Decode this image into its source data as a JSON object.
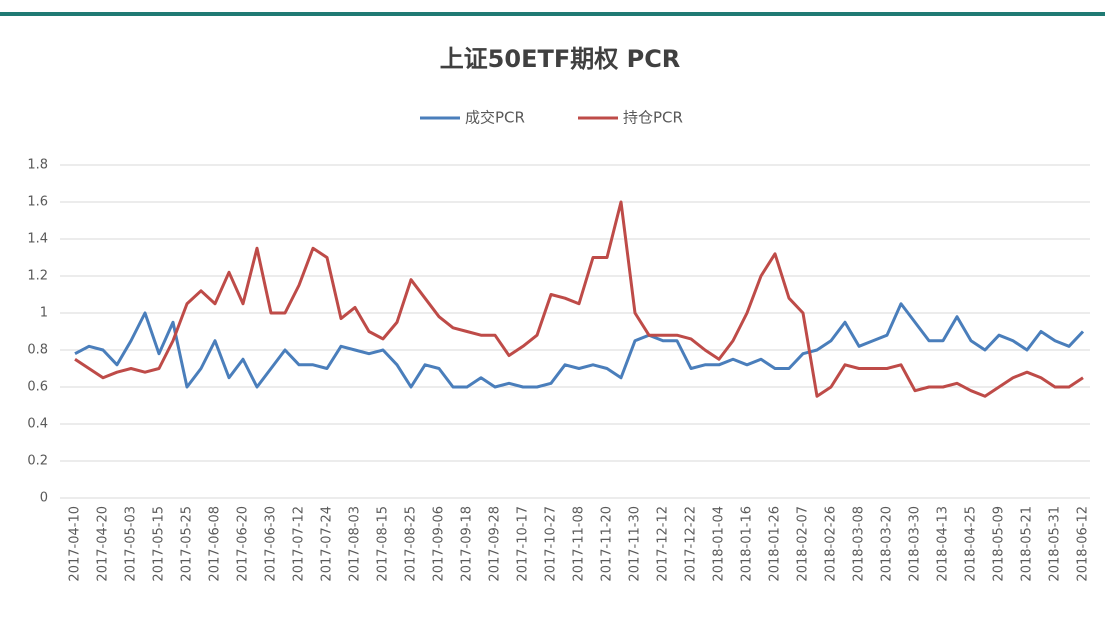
{
  "chart_data": {
    "type": "line",
    "title": "上证50ETF期权 PCR",
    "categories": [
      "2017-04-10",
      null,
      "2017-04-20",
      null,
      "2017-05-03",
      null,
      "2017-05-15",
      null,
      "2017-05-25",
      null,
      "2017-06-08",
      null,
      "2017-06-20",
      null,
      "2017-06-30",
      null,
      "2017-07-12",
      null,
      "2017-07-24",
      null,
      "2017-08-03",
      null,
      "2017-08-15",
      null,
      "2017-08-25",
      null,
      "2017-09-06",
      null,
      "2017-09-18",
      null,
      "2017-09-28",
      null,
      "2017-10-17",
      null,
      "2017-10-27",
      null,
      "2017-11-08",
      null,
      "2017-11-20",
      null,
      "2017-11-30",
      null,
      "2017-12-12",
      null,
      "2017-12-22",
      null,
      "2018-01-04",
      null,
      "2018-01-16",
      null,
      "2018-01-26",
      null,
      "2018-02-07",
      null,
      "2018-02-26",
      null,
      "2018-03-08",
      null,
      "2018-03-20",
      null,
      "2018-03-30",
      null,
      "2018-04-13",
      null,
      "2018-04-25",
      null,
      "2018-05-09",
      null,
      "2018-05-21",
      null,
      "2018-05-31",
      null,
      "2018-06-12"
    ],
    "series": [
      {
        "name": "成交PCR",
        "color": "#4a7ebb",
        "values": [
          0.78,
          0.82,
          0.8,
          0.72,
          0.85,
          1.0,
          0.78,
          0.95,
          0.6,
          0.7,
          0.85,
          0.65,
          0.75,
          0.6,
          0.7,
          0.8,
          0.72,
          0.72,
          0.7,
          0.82,
          0.8,
          0.78,
          0.8,
          0.72,
          0.6,
          0.72,
          0.7,
          0.6,
          0.6,
          0.65,
          0.6,
          0.62,
          0.6,
          0.6,
          0.62,
          0.72,
          0.7,
          0.72,
          0.7,
          0.65,
          0.85,
          0.88,
          0.85,
          0.85,
          0.7,
          0.72,
          0.72,
          0.75,
          0.72,
          0.75,
          0.7,
          0.7,
          0.78,
          0.8,
          0.85,
          0.95,
          0.82,
          0.85,
          0.88,
          1.05,
          0.95,
          0.85,
          0.85,
          0.98,
          0.85,
          0.8,
          0.88,
          0.85,
          0.8,
          0.9,
          0.85,
          0.82,
          0.9
        ]
      },
      {
        "name": "持仓PCR",
        "color": "#be4b48",
        "values": [
          0.75,
          0.7,
          0.65,
          0.68,
          0.7,
          0.68,
          0.7,
          0.85,
          1.05,
          1.12,
          1.05,
          1.22,
          1.05,
          1.35,
          1.0,
          1.0,
          1.15,
          1.35,
          1.3,
          0.97,
          1.03,
          0.9,
          0.86,
          0.95,
          1.18,
          1.08,
          0.98,
          0.92,
          0.9,
          0.88,
          0.88,
          0.77,
          0.82,
          0.88,
          1.1,
          1.08,
          1.05,
          1.3,
          1.3,
          1.6,
          1.0,
          0.88,
          0.88,
          0.88,
          0.86,
          0.8,
          0.75,
          0.85,
          1.0,
          1.2,
          1.32,
          1.08,
          1.0,
          0.55,
          0.6,
          0.72,
          0.7,
          0.7,
          0.7,
          0.72,
          0.58,
          0.6,
          0.6,
          0.62,
          0.58,
          0.55,
          0.6,
          0.65,
          0.68,
          0.65,
          0.6,
          0.6,
          0.65
        ]
      }
    ],
    "ylim": [
      0,
      1.8
    ],
    "yticks": [
      0,
      0.2,
      0.4,
      0.6,
      0.8,
      1,
      1.2,
      1.4,
      1.6,
      1.8
    ],
    "grid": true
  }
}
